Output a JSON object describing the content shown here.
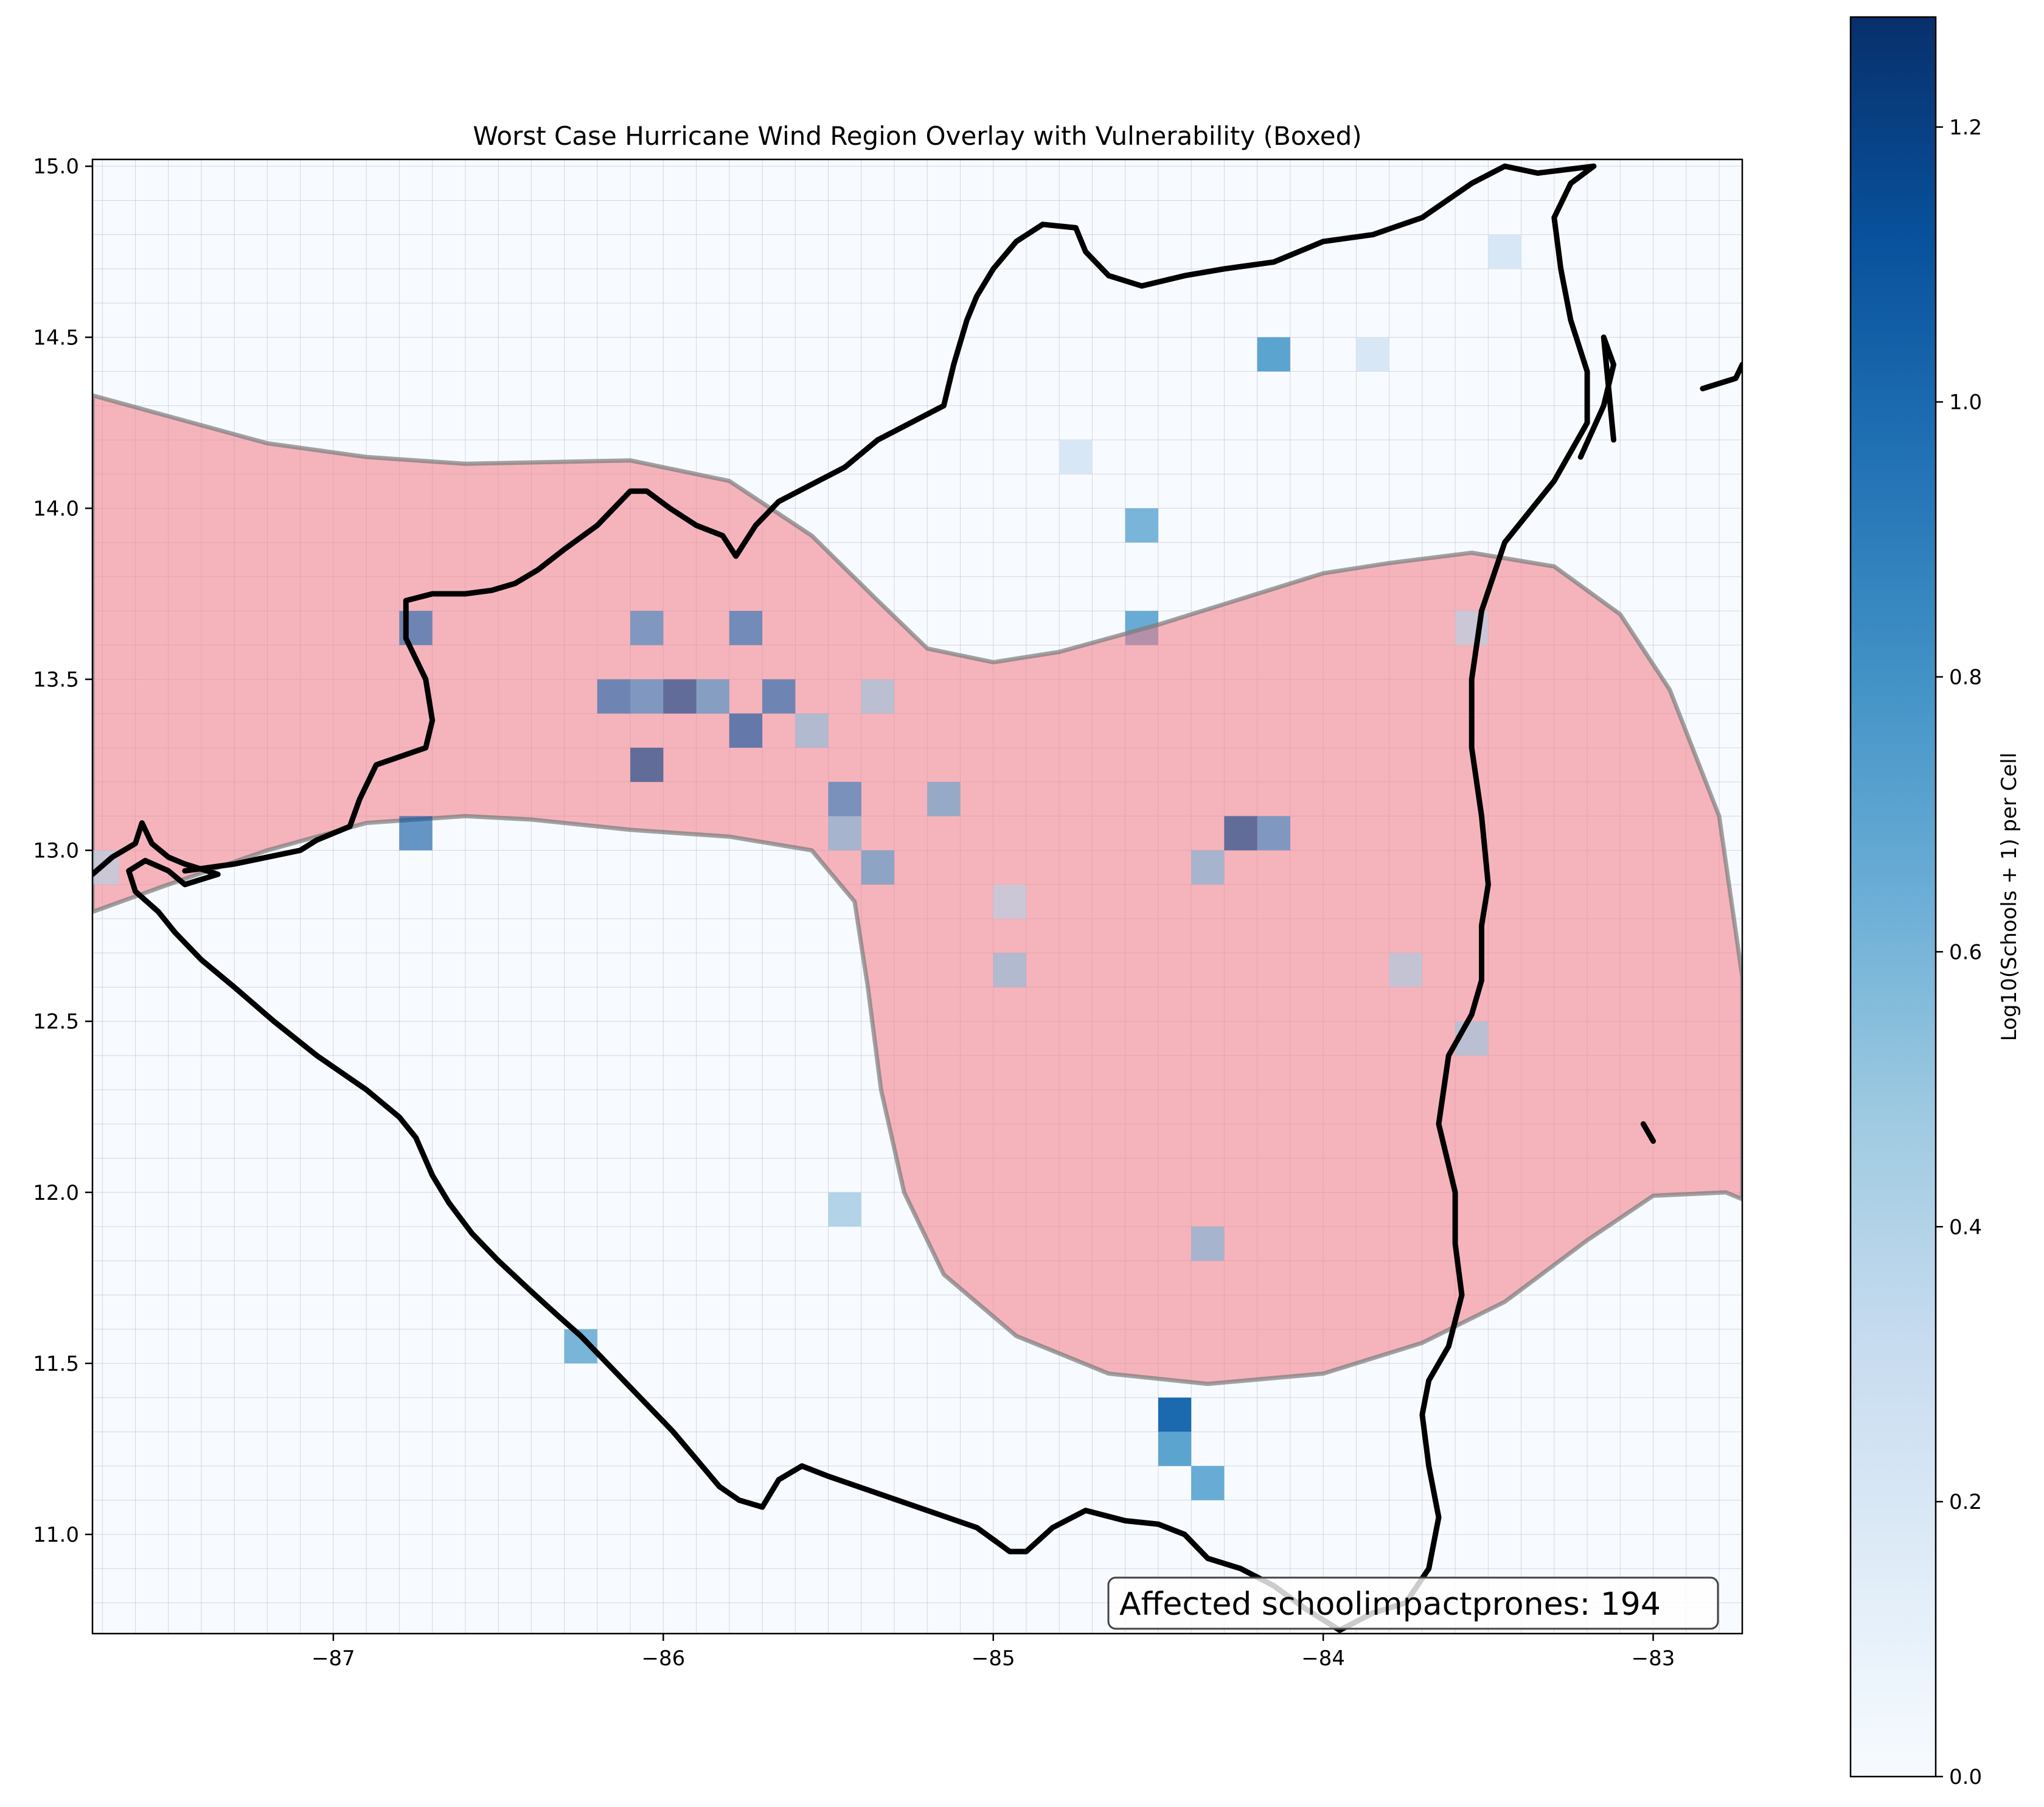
{
  "chart_data": {
    "type": "heatmap",
    "title": "Worst Case Hurricane Wind Region Overlay with Vulnerability (Boxed)",
    "xlim": [
      -87.73,
      -82.73
    ],
    "ylim": [
      10.71,
      15.02
    ],
    "xticks": [
      -87,
      -86,
      -85,
      -84,
      -83
    ],
    "yticks": [
      11.0,
      11.5,
      12.0,
      12.5,
      13.0,
      13.5,
      14.0,
      14.5,
      15.0
    ],
    "xtick_labels": [
      "−87",
      "−86",
      "−85",
      "−84",
      "−83"
    ],
    "ytick_labels": [
      "11.0",
      "11.5",
      "12.0",
      "12.5",
      "13.0",
      "13.5",
      "14.0",
      "14.5",
      "15.0"
    ],
    "grid": true,
    "grid_spacing_deg": 0.1,
    "colormap": "Blues",
    "colorbar": {
      "label": "Log10(Schools + 1) per Cell",
      "range": [
        0.0,
        1.28
      ],
      "ticks": [
        0.0,
        0.2,
        0.4,
        0.6,
        0.8,
        1.0,
        1.2
      ],
      "tick_labels": [
        "0.0",
        "0.2",
        "0.4",
        "0.6",
        "0.8",
        "1.0",
        "1.2"
      ]
    },
    "annotation": "Affected schoolimpactprones: 194",
    "wind_region_color": "#f47a85",
    "coastline_color": "#000000",
    "wind_region_polygon": [
      [
        -87.73,
        14.33
      ],
      [
        -87.2,
        14.19
      ],
      [
        -86.9,
        14.15
      ],
      [
        -86.6,
        14.13
      ],
      [
        -86.1,
        14.14
      ],
      [
        -85.8,
        14.08
      ],
      [
        -85.55,
        13.92
      ],
      [
        -85.35,
        13.73
      ],
      [
        -85.2,
        13.59
      ],
      [
        -85.0,
        13.55
      ],
      [
        -84.8,
        13.58
      ],
      [
        -84.5,
        13.66
      ],
      [
        -84.2,
        13.75
      ],
      [
        -84.0,
        13.81
      ],
      [
        -83.8,
        13.84
      ],
      [
        -83.55,
        13.87
      ],
      [
        -83.3,
        13.83
      ],
      [
        -83.1,
        13.69
      ],
      [
        -82.95,
        13.47
      ],
      [
        -82.8,
        13.1
      ],
      [
        -82.73,
        12.63
      ],
      [
        -82.73,
        11.98
      ],
      [
        -82.78,
        12.0
      ],
      [
        -83.0,
        11.99
      ],
      [
        -83.2,
        11.86
      ],
      [
        -83.45,
        11.68
      ],
      [
        -83.7,
        11.56
      ],
      [
        -84.0,
        11.47
      ],
      [
        -84.35,
        11.44
      ],
      [
        -84.65,
        11.47
      ],
      [
        -84.93,
        11.58
      ],
      [
        -85.15,
        11.76
      ],
      [
        -85.27,
        12.0
      ],
      [
        -85.34,
        12.3
      ],
      [
        -85.38,
        12.6
      ],
      [
        -85.42,
        12.85
      ],
      [
        -85.55,
        13.0
      ],
      [
        -85.8,
        13.04
      ],
      [
        -86.1,
        13.06
      ],
      [
        -86.4,
        13.09
      ],
      [
        -86.6,
        13.1
      ],
      [
        -86.9,
        13.08
      ],
      [
        -87.2,
        13.0
      ],
      [
        -87.5,
        12.9
      ],
      [
        -87.73,
        12.82
      ]
    ],
    "coastline": [
      [
        [
          -87.73,
          12.93
        ],
        [
          -87.67,
          12.98
        ],
        [
          -87.6,
          13.02
        ],
        [
          -87.58,
          13.08
        ],
        [
          -87.55,
          13.02
        ],
        [
          -87.5,
          12.98
        ],
        [
          -87.45,
          12.96
        ],
        [
          -87.35,
          12.93
        ],
        [
          -87.45,
          12.9
        ],
        [
          -87.5,
          12.94
        ],
        [
          -87.57,
          12.97
        ],
        [
          -87.62,
          12.94
        ],
        [
          -87.6,
          12.88
        ],
        [
          -87.53,
          12.82
        ],
        [
          -87.48,
          12.76
        ],
        [
          -87.4,
          12.68
        ],
        [
          -87.3,
          12.6
        ],
        [
          -87.18,
          12.5
        ],
        [
          -87.05,
          12.4
        ],
        [
          -86.9,
          12.3
        ],
        [
          -86.8,
          12.22
        ],
        [
          -86.75,
          12.16
        ],
        [
          -86.7,
          12.05
        ],
        [
          -86.65,
          11.97
        ],
        [
          -86.58,
          11.88
        ],
        [
          -86.5,
          11.8
        ],
        [
          -86.4,
          11.71
        ],
        [
          -86.32,
          11.64
        ],
        [
          -86.25,
          11.58
        ],
        [
          -86.15,
          11.48
        ],
        [
          -86.05,
          11.38
        ],
        [
          -85.97,
          11.3
        ],
        [
          -85.9,
          11.22
        ],
        [
          -85.83,
          11.14
        ],
        [
          -85.77,
          11.1
        ],
        [
          -85.7,
          11.08
        ],
        [
          -85.65,
          11.16
        ],
        [
          -85.58,
          11.2
        ],
        [
          -85.5,
          11.17
        ],
        [
          -85.35,
          11.12
        ],
        [
          -85.2,
          11.07
        ],
        [
          -85.05,
          11.02
        ],
        [
          -84.95,
          10.95
        ],
        [
          -84.9,
          10.95
        ],
        [
          -84.82,
          11.02
        ],
        [
          -84.72,
          11.07
        ],
        [
          -84.6,
          11.04
        ],
        [
          -84.5,
          11.03
        ],
        [
          -84.42,
          11.0
        ],
        [
          -84.35,
          10.93
        ],
        [
          -84.25,
          10.9
        ],
        [
          -84.15,
          10.85
        ],
        [
          -84.05,
          10.78
        ],
        [
          -83.95,
          10.72
        ],
        [
          -83.85,
          10.77
        ],
        [
          -83.75,
          10.8
        ],
        [
          -83.68,
          10.9
        ],
        [
          -83.65,
          11.05
        ],
        [
          -83.68,
          11.2
        ],
        [
          -83.7,
          11.35
        ],
        [
          -83.68,
          11.45
        ],
        [
          -83.62,
          11.55
        ],
        [
          -83.58,
          11.7
        ],
        [
          -83.6,
          11.85
        ],
        [
          -83.6,
          12.0
        ],
        [
          -83.65,
          12.2
        ],
        [
          -83.62,
          12.4
        ],
        [
          -83.55,
          12.52
        ],
        [
          -83.52,
          12.62
        ],
        [
          -83.52,
          12.78
        ],
        [
          -83.5,
          12.9
        ],
        [
          -83.52,
          13.1
        ],
        [
          -83.55,
          13.3
        ],
        [
          -83.55,
          13.5
        ],
        [
          -83.52,
          13.7
        ],
        [
          -83.45,
          13.9
        ],
        [
          -83.3,
          14.08
        ],
        [
          -83.2,
          14.25
        ],
        [
          -83.2,
          14.4
        ],
        [
          -83.25,
          14.55
        ],
        [
          -83.28,
          14.7
        ],
        [
          -83.3,
          14.85
        ],
        [
          -83.25,
          14.95
        ],
        [
          -83.18,
          15.0
        ],
        [
          -83.35,
          14.98
        ],
        [
          -83.45,
          15.0
        ],
        [
          -83.55,
          14.95
        ],
        [
          -83.7,
          14.85
        ],
        [
          -83.85,
          14.8
        ],
        [
          -84.0,
          14.78
        ],
        [
          -84.15,
          14.72
        ],
        [
          -84.3,
          14.7
        ],
        [
          -84.42,
          14.68
        ],
        [
          -84.55,
          14.65
        ],
        [
          -84.65,
          14.68
        ],
        [
          -84.72,
          14.75
        ],
        [
          -84.75,
          14.82
        ],
        [
          -84.85,
          14.83
        ],
        [
          -84.93,
          14.78
        ],
        [
          -85.0,
          14.7
        ],
        [
          -85.05,
          14.62
        ],
        [
          -85.08,
          14.55
        ],
        [
          -85.12,
          14.42
        ],
        [
          -85.15,
          14.3
        ],
        [
          -85.25,
          14.25
        ],
        [
          -85.35,
          14.2
        ],
        [
          -85.45,
          14.12
        ],
        [
          -85.55,
          14.07
        ],
        [
          -85.65,
          14.02
        ],
        [
          -85.72,
          13.95
        ],
        [
          -85.78,
          13.86
        ],
        [
          -85.82,
          13.92
        ],
        [
          -85.9,
          13.95
        ],
        [
          -85.98,
          14.0
        ],
        [
          -86.05,
          14.05
        ],
        [
          -86.1,
          14.05
        ],
        [
          -86.15,
          14.0
        ],
        [
          -86.2,
          13.95
        ],
        [
          -86.3,
          13.88
        ],
        [
          -86.38,
          13.82
        ],
        [
          -86.45,
          13.78
        ],
        [
          -86.52,
          13.76
        ],
        [
          -86.6,
          13.75
        ],
        [
          -86.7,
          13.75
        ],
        [
          -86.78,
          13.73
        ],
        [
          -86.78,
          13.62
        ],
        [
          -86.72,
          13.5
        ],
        [
          -86.7,
          13.38
        ],
        [
          -86.72,
          13.3
        ],
        [
          -86.78,
          13.28
        ],
        [
          -86.87,
          13.25
        ],
        [
          -86.92,
          13.15
        ],
        [
          -86.95,
          13.07
        ],
        [
          -87.05,
          13.03
        ],
        [
          -87.1,
          13.0
        ],
        [
          -87.2,
          12.98
        ],
        [
          -87.3,
          12.96
        ],
        [
          -87.45,
          12.94
        ]
      ],
      [
        [
          -83.22,
          14.15
        ],
        [
          -83.15,
          14.3
        ],
        [
          -83.12,
          14.42
        ],
        [
          -83.15,
          14.5
        ],
        [
          -83.12,
          14.2
        ]
      ],
      [
        [
          -82.85,
          14.35
        ],
        [
          -82.75,
          14.38
        ],
        [
          -82.73,
          14.42
        ]
      ],
      [
        [
          -83.03,
          12.2
        ],
        [
          -83.0,
          12.15
        ]
      ]
    ],
    "cells": [
      {
        "lon": -87.7,
        "lat": 12.95,
        "v": 0.4,
        "in_region": true
      },
      {
        "lon": -86.75,
        "lat": 13.65,
        "v": 1.0,
        "in_region": true
      },
      {
        "lon": -86.75,
        "lat": 13.05,
        "v": 1.1,
        "in_region": true
      },
      {
        "lon": -86.05,
        "lat": 13.65,
        "v": 0.85,
        "in_region": true
      },
      {
        "lon": -85.75,
        "lat": 13.65,
        "v": 0.95,
        "in_region": true
      },
      {
        "lon": -86.15,
        "lat": 13.45,
        "v": 1.0,
        "in_region": true
      },
      {
        "lon": -86.05,
        "lat": 13.45,
        "v": 0.85,
        "in_region": true
      },
      {
        "lon": -85.95,
        "lat": 13.45,
        "v": 1.2,
        "in_region": true
      },
      {
        "lon": -85.85,
        "lat": 13.45,
        "v": 0.8,
        "in_region": true
      },
      {
        "lon": -85.65,
        "lat": 13.45,
        "v": 1.0,
        "in_region": true
      },
      {
        "lon": -85.35,
        "lat": 13.45,
        "v": 0.5,
        "in_region": true
      },
      {
        "lon": -85.75,
        "lat": 13.35,
        "v": 1.1,
        "in_region": true
      },
      {
        "lon": -85.55,
        "lat": 13.35,
        "v": 0.55,
        "in_region": true
      },
      {
        "lon": -86.05,
        "lat": 13.25,
        "v": 1.2,
        "in_region": true
      },
      {
        "lon": -85.45,
        "lat": 13.15,
        "v": 0.9,
        "in_region": true
      },
      {
        "lon": -85.15,
        "lat": 13.15,
        "v": 0.7,
        "in_region": true
      },
      {
        "lon": -85.45,
        "lat": 13.05,
        "v": 0.6,
        "in_region": true
      },
      {
        "lon": -85.35,
        "lat": 12.95,
        "v": 0.75,
        "in_region": true
      },
      {
        "lon": -84.25,
        "lat": 13.05,
        "v": 1.2,
        "in_region": true
      },
      {
        "lon": -84.15,
        "lat": 13.05,
        "v": 0.85,
        "in_region": true
      },
      {
        "lon": -84.35,
        "lat": 12.95,
        "v": 0.6,
        "in_region": true
      },
      {
        "lon": -84.95,
        "lat": 12.85,
        "v": 0.4,
        "in_region": true
      },
      {
        "lon": -84.95,
        "lat": 12.65,
        "v": 0.55,
        "in_region": true
      },
      {
        "lon": -83.75,
        "lat": 12.65,
        "v": 0.45,
        "in_region": true
      },
      {
        "lon": -83.55,
        "lat": 12.45,
        "v": 0.5,
        "in_region": true
      },
      {
        "lon": -84.35,
        "lat": 11.85,
        "v": 0.6,
        "in_region": true
      },
      {
        "lon": -83.55,
        "lat": 13.65,
        "v": 0.4,
        "in_region": true
      },
      {
        "lon": -84.55,
        "lat": 13.65,
        "v": 0.65,
        "in_region": false
      },
      {
        "lon": -84.55,
        "lat": 13.95,
        "v": 0.6,
        "in_region": false
      },
      {
        "lon": -84.75,
        "lat": 14.15,
        "v": 0.2,
        "in_region": false
      },
      {
        "lon": -84.15,
        "lat": 14.45,
        "v": 0.7,
        "in_region": false
      },
      {
        "lon": -83.85,
        "lat": 14.45,
        "v": 0.2,
        "in_region": false
      },
      {
        "lon": -83.45,
        "lat": 14.75,
        "v": 0.2,
        "in_region": false
      },
      {
        "lon": -85.45,
        "lat": 11.95,
        "v": 0.4,
        "in_region": false
      },
      {
        "lon": -86.25,
        "lat": 11.55,
        "v": 0.6,
        "in_region": false
      },
      {
        "lon": -84.45,
        "lat": 11.35,
        "v": 1.0,
        "in_region": false
      },
      {
        "lon": -84.45,
        "lat": 11.25,
        "v": 0.7,
        "in_region": false
      },
      {
        "lon": -84.35,
        "lat": 11.15,
        "v": 0.65,
        "in_region": false
      }
    ]
  }
}
